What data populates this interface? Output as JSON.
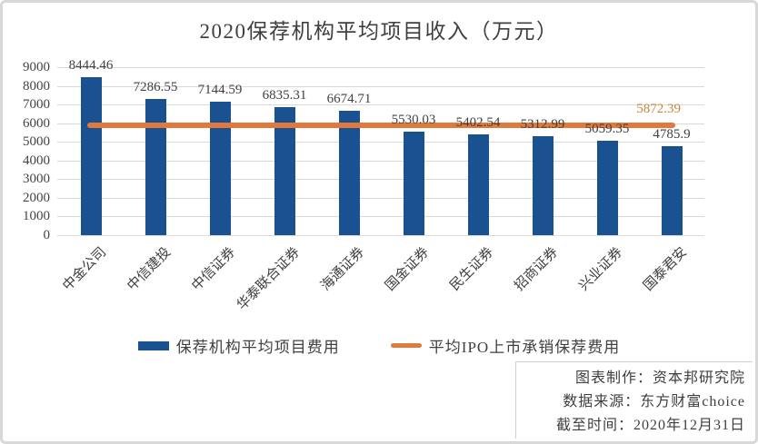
{
  "title": "2020保荐机构平均项目收入（万元）",
  "colors": {
    "bar": "#1a5291",
    "line": "#e0793b",
    "line_label": "#c8863c",
    "grid": "#d9d9d9",
    "text": "#404040"
  },
  "chart_data": {
    "type": "bar",
    "title": "2020保荐机构平均项目收入（万元）",
    "categories": [
      "中金公司",
      "中信建投",
      "中信证券",
      "华泰联合证券",
      "海通证券",
      "国金证券",
      "民生证券",
      "招商证券",
      "兴业证券",
      "国泰君安"
    ],
    "series": [
      {
        "name": "保荐机构平均项目费用",
        "type": "bar",
        "values": [
          8444.46,
          7286.55,
          7144.59,
          6835.31,
          6674.71,
          5530.03,
          5402.54,
          5312.99,
          5059.35,
          4785.9
        ]
      },
      {
        "name": "平均IPO上市承销保荐费用",
        "type": "line",
        "value": 5872.39
      }
    ],
    "ylim": [
      0,
      9000
    ],
    "yticks": [
      0,
      1000,
      2000,
      3000,
      4000,
      5000,
      6000,
      7000,
      8000,
      9000
    ],
    "grid": true,
    "legend_position": "bottom"
  },
  "footer": {
    "lines": [
      "图表制作：资本邦研究院",
      "数据来源：东方财富choice",
      "截至时间：2020年12月31日"
    ]
  }
}
